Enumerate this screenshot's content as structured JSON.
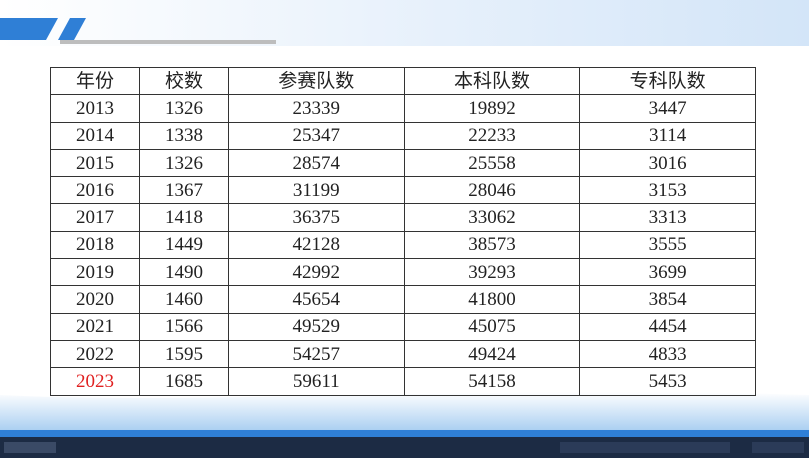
{
  "table": {
    "header": [
      "年份",
      "校数",
      "参赛队数",
      "本科队数",
      "专科队数"
    ],
    "rows": [
      [
        2013,
        1326,
        23339,
        19892,
        3447
      ],
      [
        2014,
        1338,
        25347,
        22233,
        3114
      ],
      [
        2015,
        1326,
        28574,
        25558,
        3016
      ],
      [
        2016,
        1367,
        31199,
        28046,
        3153
      ],
      [
        2017,
        1418,
        36375,
        33062,
        3313
      ],
      [
        2018,
        1449,
        42128,
        38573,
        3555
      ],
      [
        2019,
        1490,
        42992,
        39293,
        3699
      ],
      [
        2020,
        1460,
        45654,
        41800,
        3854
      ],
      [
        2021,
        1566,
        49529,
        45075,
        4454
      ],
      [
        2022,
        1595,
        54257,
        49424,
        4833
      ],
      [
        2023,
        1685,
        59611,
        54158,
        5453
      ]
    ]
  }
}
